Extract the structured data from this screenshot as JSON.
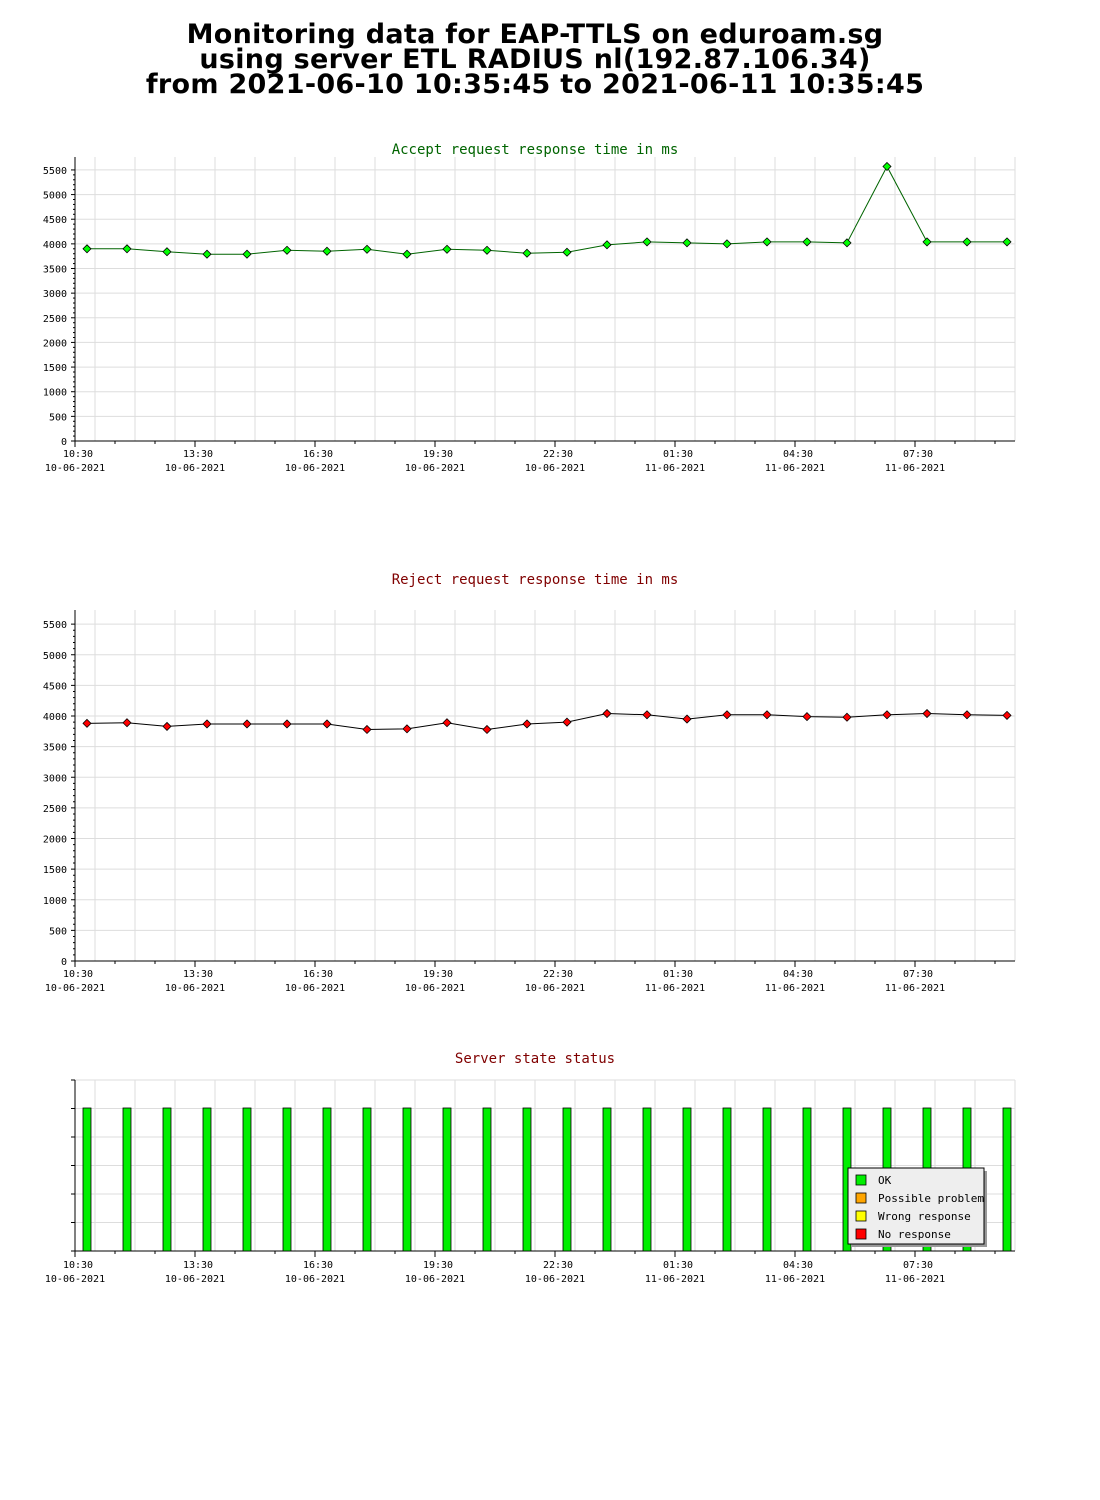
{
  "header": {
    "line1": "Monitoring data for EAP-TTLS on eduroam.sg",
    "line2": "using server ETL RADIUS nl(192.87.106.34)",
    "line3": "from 2021-06-10 10:35:45 to 2021-06-11 10:35:45"
  },
  "colors": {
    "accept_title": "#006400",
    "reject_title": "#800000",
    "status_title": "#800000",
    "accept_line": "#006400",
    "reject_line": "#000000",
    "accept_marker": "#00ff00",
    "reject_marker": "#ff0000",
    "ok": "#00ee00",
    "possible_problem": "#ffa500",
    "wrong_response": "#ffff00",
    "no_response": "#ff0000",
    "grid": "#dddddd"
  },
  "x_axis": {
    "ticks": [
      {
        "time": "10:30",
        "date": "10-06-2021"
      },
      {
        "time": "13:30",
        "date": "10-06-2021"
      },
      {
        "time": "16:30",
        "date": "10-06-2021"
      },
      {
        "time": "19:30",
        "date": "10-06-2021"
      },
      {
        "time": "22:30",
        "date": "10-06-2021"
      },
      {
        "time": "01:30",
        "date": "11-06-2021"
      },
      {
        "time": "04:30",
        "date": "11-06-2021"
      },
      {
        "time": "07:30",
        "date": "11-06-2021"
      }
    ]
  },
  "chart_data": [
    {
      "type": "line",
      "title": "Accept request response time in ms",
      "xlabel": "",
      "ylabel": "",
      "x": [
        "10:35",
        "11:35",
        "12:35",
        "13:35",
        "14:35",
        "15:35",
        "16:35",
        "17:35",
        "18:35",
        "19:35",
        "20:35",
        "21:35",
        "22:35",
        "23:35",
        "00:35",
        "01:35",
        "02:35",
        "03:35",
        "04:35",
        "05:35",
        "06:35",
        "07:35",
        "08:35",
        "09:35"
      ],
      "series": [
        {
          "values": [
            3900,
            3900,
            3840,
            3790,
            3790,
            3870,
            3850,
            3890,
            3790,
            3890,
            3870,
            3810,
            3830,
            3980,
            4040,
            4020,
            4000,
            4040,
            4040,
            4020,
            5570,
            4040,
            4040,
            4040
          ]
        }
      ],
      "ylim": [
        0,
        5600
      ],
      "yticks": [
        0,
        500,
        1000,
        1500,
        2000,
        2500,
        3000,
        3500,
        4000,
        4500,
        5000,
        5500
      ],
      "grid": true
    },
    {
      "type": "line",
      "title": "Reject request response time in ms",
      "xlabel": "",
      "ylabel": "",
      "x": [
        "10:35",
        "11:35",
        "12:35",
        "13:35",
        "14:35",
        "15:35",
        "16:35",
        "17:35",
        "18:35",
        "19:35",
        "20:35",
        "21:35",
        "22:35",
        "23:35",
        "00:35",
        "01:35",
        "02:35",
        "03:35",
        "04:35",
        "05:35",
        "06:35",
        "07:35",
        "08:35",
        "09:35"
      ],
      "series": [
        {
          "values": [
            3880,
            3890,
            3830,
            3870,
            3870,
            3870,
            3870,
            3780,
            3790,
            3890,
            3780,
            3870,
            3900,
            4040,
            4020,
            3950,
            4020,
            4020,
            3990,
            3980,
            4020,
            4040,
            4020,
            4010
          ]
        }
      ],
      "ylim": [
        0,
        5600
      ],
      "yticks": [
        0,
        500,
        1000,
        1500,
        2000,
        2500,
        3000,
        3500,
        4000,
        4500,
        5000,
        5500
      ],
      "grid": true
    },
    {
      "type": "bar",
      "title": "Server state status",
      "xlabel": "",
      "ylabel": "",
      "x": [
        "10:35",
        "11:35",
        "12:35",
        "13:35",
        "14:35",
        "15:35",
        "16:35",
        "17:35",
        "18:35",
        "19:35",
        "20:35",
        "21:35",
        "22:35",
        "23:35",
        "00:35",
        "01:35",
        "02:35",
        "03:35",
        "04:35",
        "05:35",
        "06:35",
        "07:35",
        "08:35",
        "09:35"
      ],
      "status": [
        "OK",
        "OK",
        "OK",
        "OK",
        "OK",
        "OK",
        "OK",
        "OK",
        "OK",
        "OK",
        "OK",
        "OK",
        "OK",
        "OK",
        "OK",
        "OK",
        "OK",
        "OK",
        "OK",
        "OK",
        "OK",
        "OK",
        "OK",
        "OK"
      ],
      "legend": [
        "OK",
        "Possible problem",
        "Wrong response",
        "No response"
      ],
      "legend_position": "bottom-right"
    }
  ]
}
